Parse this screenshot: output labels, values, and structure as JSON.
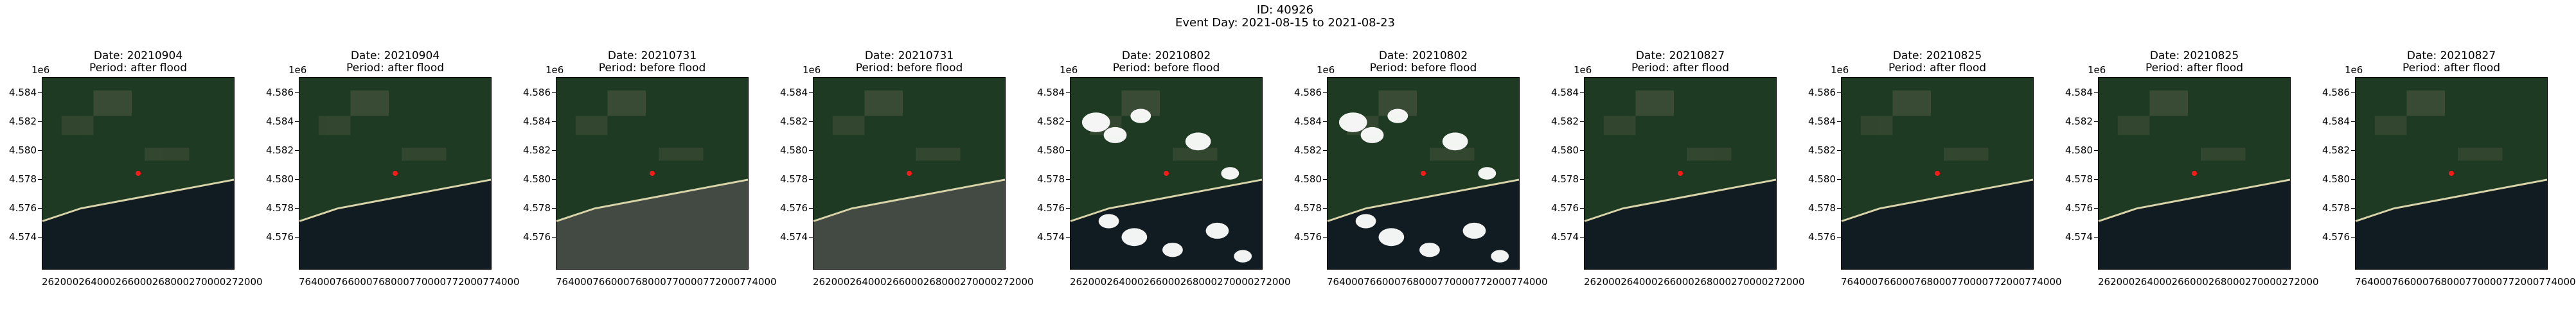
{
  "header": {
    "id_line": "ID: 40926",
    "event_line": "Event Day: 2021-08-15 to 2021-08-23"
  },
  "colors": {
    "land": "#1e3a23",
    "water_dark": "#111c22",
    "water_hazy": "#434a43",
    "beach": "#d8d3a8",
    "cloud": "#ffffff",
    "marker": "#ff1a1a"
  },
  "panels": [
    {
      "date": "Date: 20210904",
      "period": "Period: after flood",
      "sci": "1e6",
      "yticks": [
        "4.584",
        "4.582",
        "4.580",
        "4.578",
        "4.576",
        "4.574"
      ],
      "xlabels": "262000264000266000268000270000272000",
      "variant": "dark"
    },
    {
      "date": "Date: 20210904",
      "period": "Period: after flood",
      "sci": "1e6",
      "yticks": [
        "4.586",
        "4.584",
        "4.582",
        "4.580",
        "4.578",
        "4.576"
      ],
      "xlabels": "764000766000768000770000772000774000",
      "variant": "dark"
    },
    {
      "date": "Date: 20210731",
      "period": "Period: before flood",
      "sci": "1e6",
      "yticks": [
        "4.586",
        "4.584",
        "4.582",
        "4.580",
        "4.578",
        "4.576"
      ],
      "xlabels": "764000766000768000770000772000774000",
      "variant": "hazy"
    },
    {
      "date": "Date: 20210731",
      "period": "Period: before flood",
      "sci": "1e6",
      "yticks": [
        "4.584",
        "4.582",
        "4.580",
        "4.578",
        "4.576",
        "4.574"
      ],
      "xlabels": "262000264000266000268000270000272000",
      "variant": "hazy"
    },
    {
      "date": "Date: 20210802",
      "period": "Period: before flood",
      "sci": "1e6",
      "yticks": [
        "4.584",
        "4.582",
        "4.580",
        "4.578",
        "4.576",
        "4.574"
      ],
      "xlabels": "262000264000266000268000270000272000",
      "variant": "cloudy"
    },
    {
      "date": "Date: 20210802",
      "period": "Period: before flood",
      "sci": "1e6",
      "yticks": [
        "4.586",
        "4.584",
        "4.582",
        "4.580",
        "4.578",
        "4.576"
      ],
      "xlabels": "764000766000768000770000772000774000",
      "variant": "cloudy"
    },
    {
      "date": "Date: 20210827",
      "period": "Period: after flood",
      "sci": "1e6",
      "yticks": [
        "4.584",
        "4.582",
        "4.580",
        "4.578",
        "4.576",
        "4.574"
      ],
      "xlabels": "262000264000266000268000270000272000",
      "variant": "dark"
    },
    {
      "date": "Date: 20210825",
      "period": "Period: after flood",
      "sci": "1e6",
      "yticks": [
        "4.586",
        "4.584",
        "4.582",
        "4.580",
        "4.578",
        "4.576"
      ],
      "xlabels": "764000766000768000770000772000774000",
      "variant": "dark"
    },
    {
      "date": "Date: 20210825",
      "period": "Period: after flood",
      "sci": "1e6",
      "yticks": [
        "4.584",
        "4.582",
        "4.580",
        "4.578",
        "4.576",
        "4.574"
      ],
      "xlabels": "262000264000266000268000270000272000",
      "variant": "dark"
    },
    {
      "date": "Date: 20210827",
      "period": "Period: after flood",
      "sci": "1e6",
      "yticks": [
        "4.586",
        "4.584",
        "4.582",
        "4.580",
        "4.578",
        "4.576"
      ],
      "xlabels": "764000766000768000770000772000774000",
      "variant": "dark"
    }
  ]
}
